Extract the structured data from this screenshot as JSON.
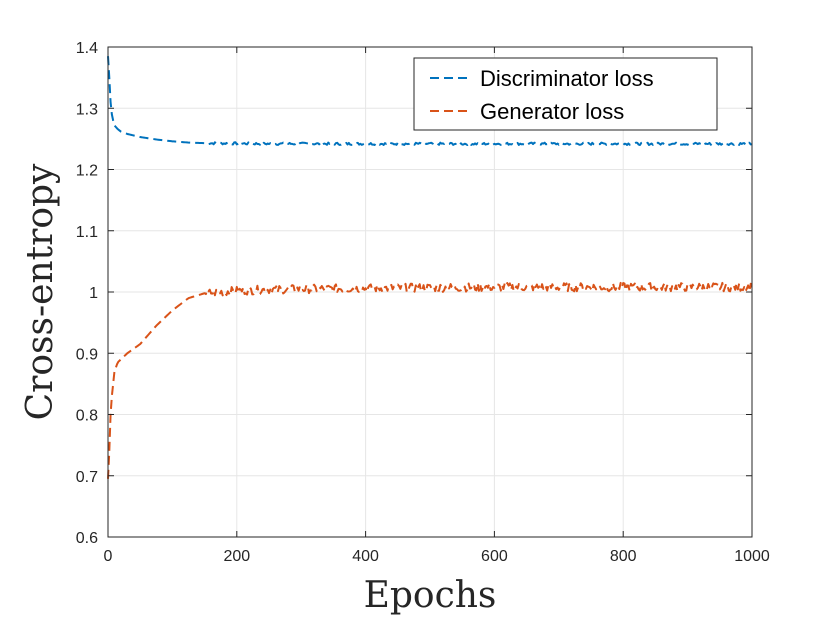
{
  "chart_data": {
    "type": "line",
    "title": "",
    "xlabel": "Epochs",
    "ylabel": "Cross-entropy",
    "xlim": [
      0,
      1000
    ],
    "ylim": [
      0.6,
      1.4
    ],
    "xticks": [
      0,
      200,
      400,
      600,
      800,
      1000
    ],
    "xtick_labels": [
      "0",
      "200",
      "400",
      "600",
      "800",
      "1000"
    ],
    "yticks": [
      0.6,
      0.7,
      0.8,
      0.9,
      1.0,
      1.1,
      1.2,
      1.3,
      1.4
    ],
    "ytick_labels": [
      "0.6",
      "0.7",
      "0.8",
      "0.9",
      "1",
      "1.1",
      "1.2",
      "1.3",
      "1.4"
    ],
    "grid": true,
    "legend_position": "top-right",
    "series": [
      {
        "name": "Discriminator loss",
        "color": "#0072BD",
        "line_style": "dashed",
        "x": [
          0,
          2,
          4,
          6,
          8,
          10,
          15,
          20,
          30,
          50,
          75,
          100,
          125,
          150,
          200,
          250,
          300,
          400,
          500,
          600,
          700,
          800,
          900,
          1000
        ],
        "values": [
          1.385,
          1.35,
          1.31,
          1.29,
          1.28,
          1.272,
          1.266,
          1.262,
          1.258,
          1.253,
          1.249,
          1.246,
          1.244,
          1.243,
          1.2425,
          1.242,
          1.242,
          1.242,
          1.242,
          1.242,
          1.242,
          1.242,
          1.242,
          1.242
        ]
      },
      {
        "name": "Generator loss",
        "color": "#D95319",
        "line_style": "dashed",
        "x": [
          0,
          2,
          4,
          6,
          8,
          10,
          15,
          20,
          30,
          50,
          75,
          100,
          125,
          150,
          175,
          200,
          250,
          300,
          400,
          500,
          600,
          700,
          800,
          900,
          1000
        ],
        "values": [
          0.695,
          0.74,
          0.8,
          0.83,
          0.85,
          0.87,
          0.885,
          0.89,
          0.9,
          0.915,
          0.945,
          0.97,
          0.99,
          0.998,
          1.0,
          1.002,
          1.004,
          1.005,
          1.006,
          1.007,
          1.008,
          1.008,
          1.008,
          1.008,
          1.008
        ]
      }
    ]
  }
}
